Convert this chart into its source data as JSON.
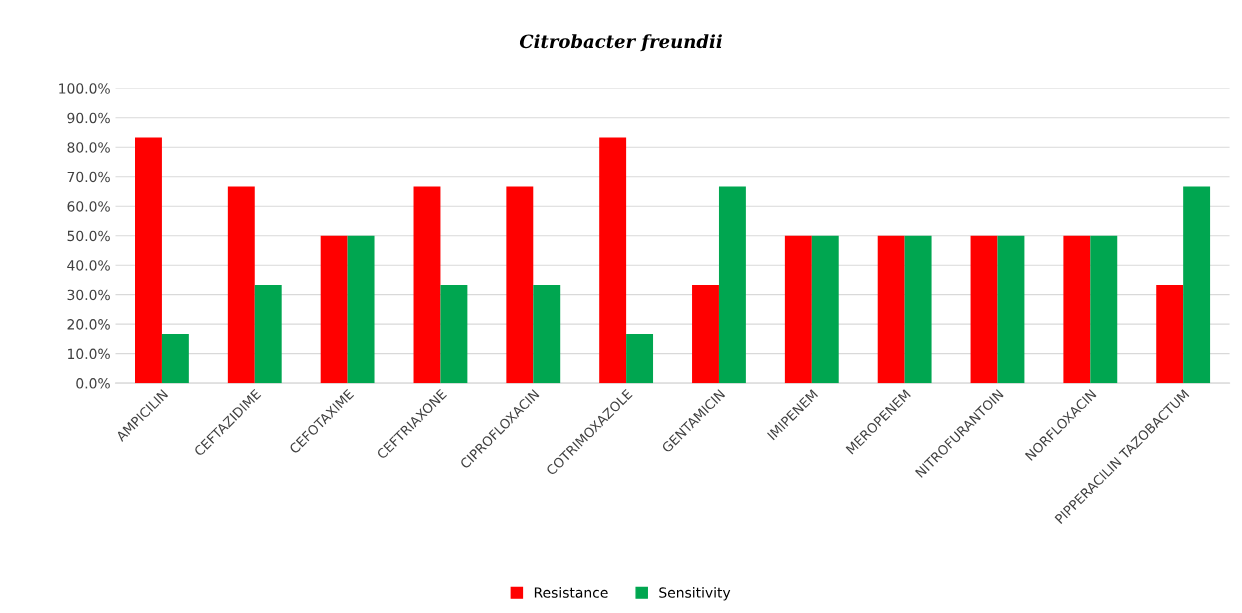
{
  "chart_data": {
    "type": "bar",
    "title": "Citrobacter freundii",
    "categories": [
      "AMPICILIN",
      "CEFTAZIDIME",
      "CEFOTAXIME",
      "CEFTRIAXONE",
      "CIPROFLOXACIN",
      "COTRIMOXAZOLE",
      "GENTAMICIN",
      "IMIPENEM",
      "MEROPENEM",
      "NITROFURANTOIN",
      "NORFLOXACIN",
      "PIPPERACILIN TAZOBACTUM"
    ],
    "series": [
      {
        "name": "Resistance",
        "color": "#ff0000",
        "values": [
          83.3,
          66.7,
          50.0,
          66.7,
          66.7,
          83.3,
          33.3,
          50.0,
          50.0,
          50.0,
          50.0,
          33.3
        ]
      },
      {
        "name": "Sensitivity",
        "color": "#00a650",
        "values": [
          16.7,
          33.3,
          50.0,
          33.3,
          33.3,
          16.7,
          66.7,
          50.0,
          50.0,
          50.0,
          50.0,
          66.7
        ]
      }
    ],
    "ylim": [
      0,
      100
    ],
    "yticks": [
      {
        "value": 0,
        "label": "0.0%"
      },
      {
        "value": 10,
        "label": "10.0%"
      },
      {
        "value": 20,
        "label": "20.0%"
      },
      {
        "value": 30,
        "label": "30.0%"
      },
      {
        "value": 40,
        "label": "40.0%"
      },
      {
        "value": 50,
        "label": "50.0%"
      },
      {
        "value": 60,
        "label": "60.0%"
      },
      {
        "value": 70,
        "label": "70.0%"
      },
      {
        "value": 80,
        "label": "80.0%"
      },
      {
        "value": 90,
        "label": "90.0%"
      },
      {
        "value": 100,
        "label": "100.0%"
      }
    ],
    "grid": "y",
    "legend": "bottom"
  }
}
